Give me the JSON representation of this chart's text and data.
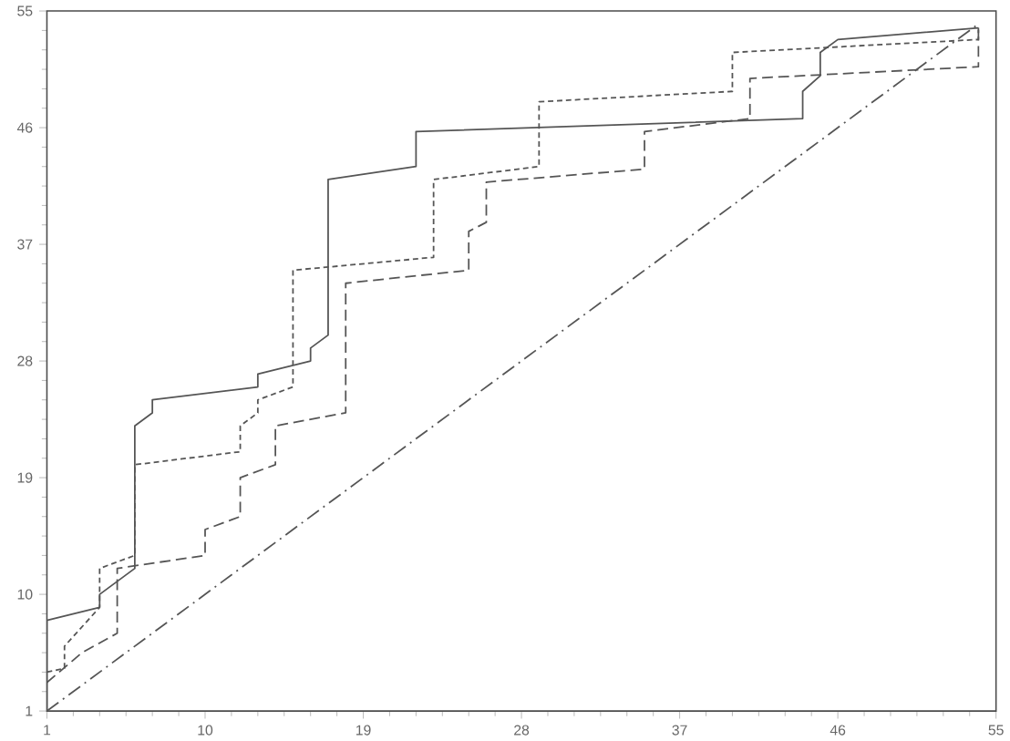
{
  "chart_data": {
    "type": "line",
    "xlim": [
      1,
      55
    ],
    "ylim": [
      1,
      55
    ],
    "xticks": [
      1,
      10,
      19,
      28,
      37,
      46,
      55
    ],
    "yticks": [
      1,
      10,
      19,
      28,
      37,
      46,
      55
    ],
    "series": [
      {
        "color": "#555555",
        "line_style": "solid",
        "x": [
          1,
          1,
          4,
          4,
          6,
          6,
          7,
          7,
          13,
          13,
          16,
          16,
          17,
          17,
          22,
          22,
          44,
          44,
          45,
          45,
          46,
          54
        ],
        "values": [
          1,
          8,
          9,
          10,
          12,
          23,
          24,
          25,
          26,
          27,
          28,
          29,
          30,
          42,
          43,
          45.7,
          46.7,
          48.8,
          50,
          51.8,
          52.8,
          53.7
        ]
      },
      {
        "color": "#555555",
        "line_style": "dotted",
        "x": [
          1,
          2,
          2,
          4,
          4,
          6,
          6,
          12,
          12,
          13,
          13,
          15,
          15,
          23,
          23,
          29,
          29,
          40,
          40,
          54,
          54
        ],
        "values": [
          4,
          4.3,
          6,
          9,
          12,
          13,
          20,
          21,
          23,
          24,
          25,
          26,
          35,
          36,
          42,
          43,
          48,
          48.8,
          51.8,
          52.8,
          53.7
        ]
      },
      {
        "color": "#555555",
        "line_style": "dashed",
        "x": [
          1,
          3,
          5,
          5,
          10,
          10,
          12,
          12,
          14,
          14,
          18,
          18,
          25,
          25,
          26,
          26,
          35,
          35,
          41,
          41,
          54,
          54
        ],
        "values": [
          3.2,
          5.5,
          7,
          12,
          13,
          15,
          16,
          19,
          20,
          23,
          24,
          34,
          35,
          38,
          38.7,
          41.8,
          42.8,
          45.7,
          46.7,
          49.8,
          50.7,
          53.7
        ]
      },
      {
        "color": "#555555",
        "line_style": "dashdotted",
        "x": [
          1,
          54
        ],
        "values": [
          1,
          54
        ]
      }
    ]
  }
}
